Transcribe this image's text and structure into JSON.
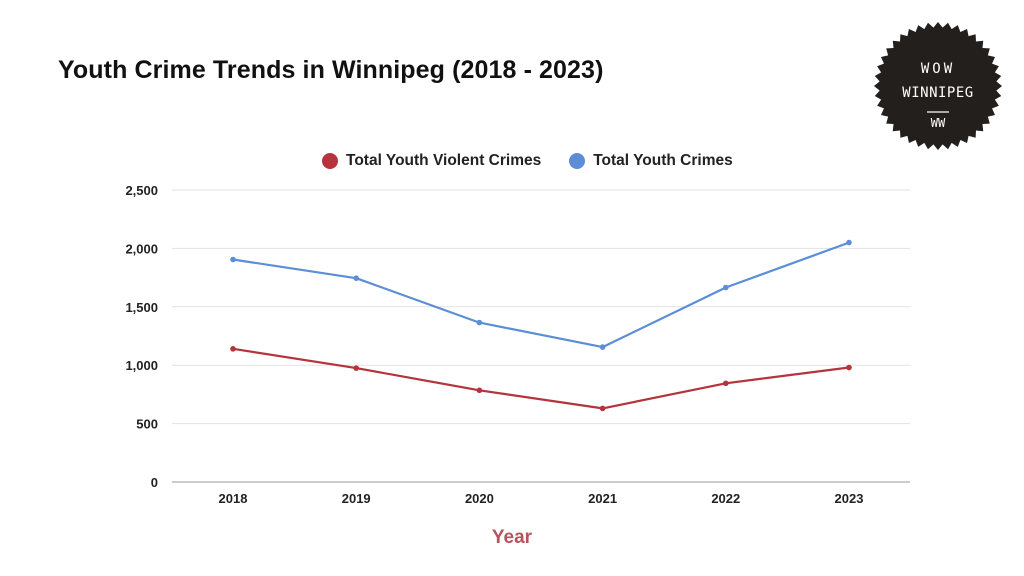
{
  "title": "Youth Crime Trends in Winnipeg (2018 - 2023)",
  "badge": {
    "line1": "WOW",
    "line2": "WINNIPEG",
    "line3": "WW",
    "bg_color": "#231f1c",
    "text_color": "#ffffff"
  },
  "chart_data": {
    "type": "line",
    "categories": [
      "2018",
      "2019",
      "2020",
      "2021",
      "2022",
      "2023"
    ],
    "series": [
      {
        "name": "Total Youth Violent Crimes",
        "color": "#b5333d",
        "values": [
          1140,
          975,
          785,
          630,
          845,
          980
        ]
      },
      {
        "name": "Total Youth Crimes",
        "color": "#5b8ed6",
        "values": [
          1905,
          1745,
          1365,
          1155,
          1665,
          2050
        ]
      }
    ],
    "ylim": [
      0,
      2500
    ],
    "yticks": [
      0,
      500,
      1000,
      1500,
      2000,
      2500
    ],
    "ytick_labels": [
      "0",
      "500",
      "1,000",
      "1,500",
      "2,000",
      "2,500"
    ],
    "xlabel": "Year",
    "xlabel_color": "#b5545c",
    "ylabel": "",
    "grid": true,
    "legend_position": "top-center"
  }
}
